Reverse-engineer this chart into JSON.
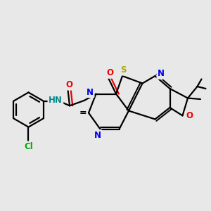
{
  "background_color": "#e8e8e8",
  "bond_color": "#000000",
  "bond_width": 1.6,
  "atom_colors": {
    "N": "#0000ee",
    "O": "#ee0000",
    "S": "#aaaa00",
    "Cl": "#00aa00",
    "NH": "#008888",
    "C": "#000000"
  },
  "figsize": [
    3.0,
    3.0
  ],
  "dpi": 100,
  "xlim": [
    0,
    10
  ],
  "ylim": [
    0,
    10
  ]
}
